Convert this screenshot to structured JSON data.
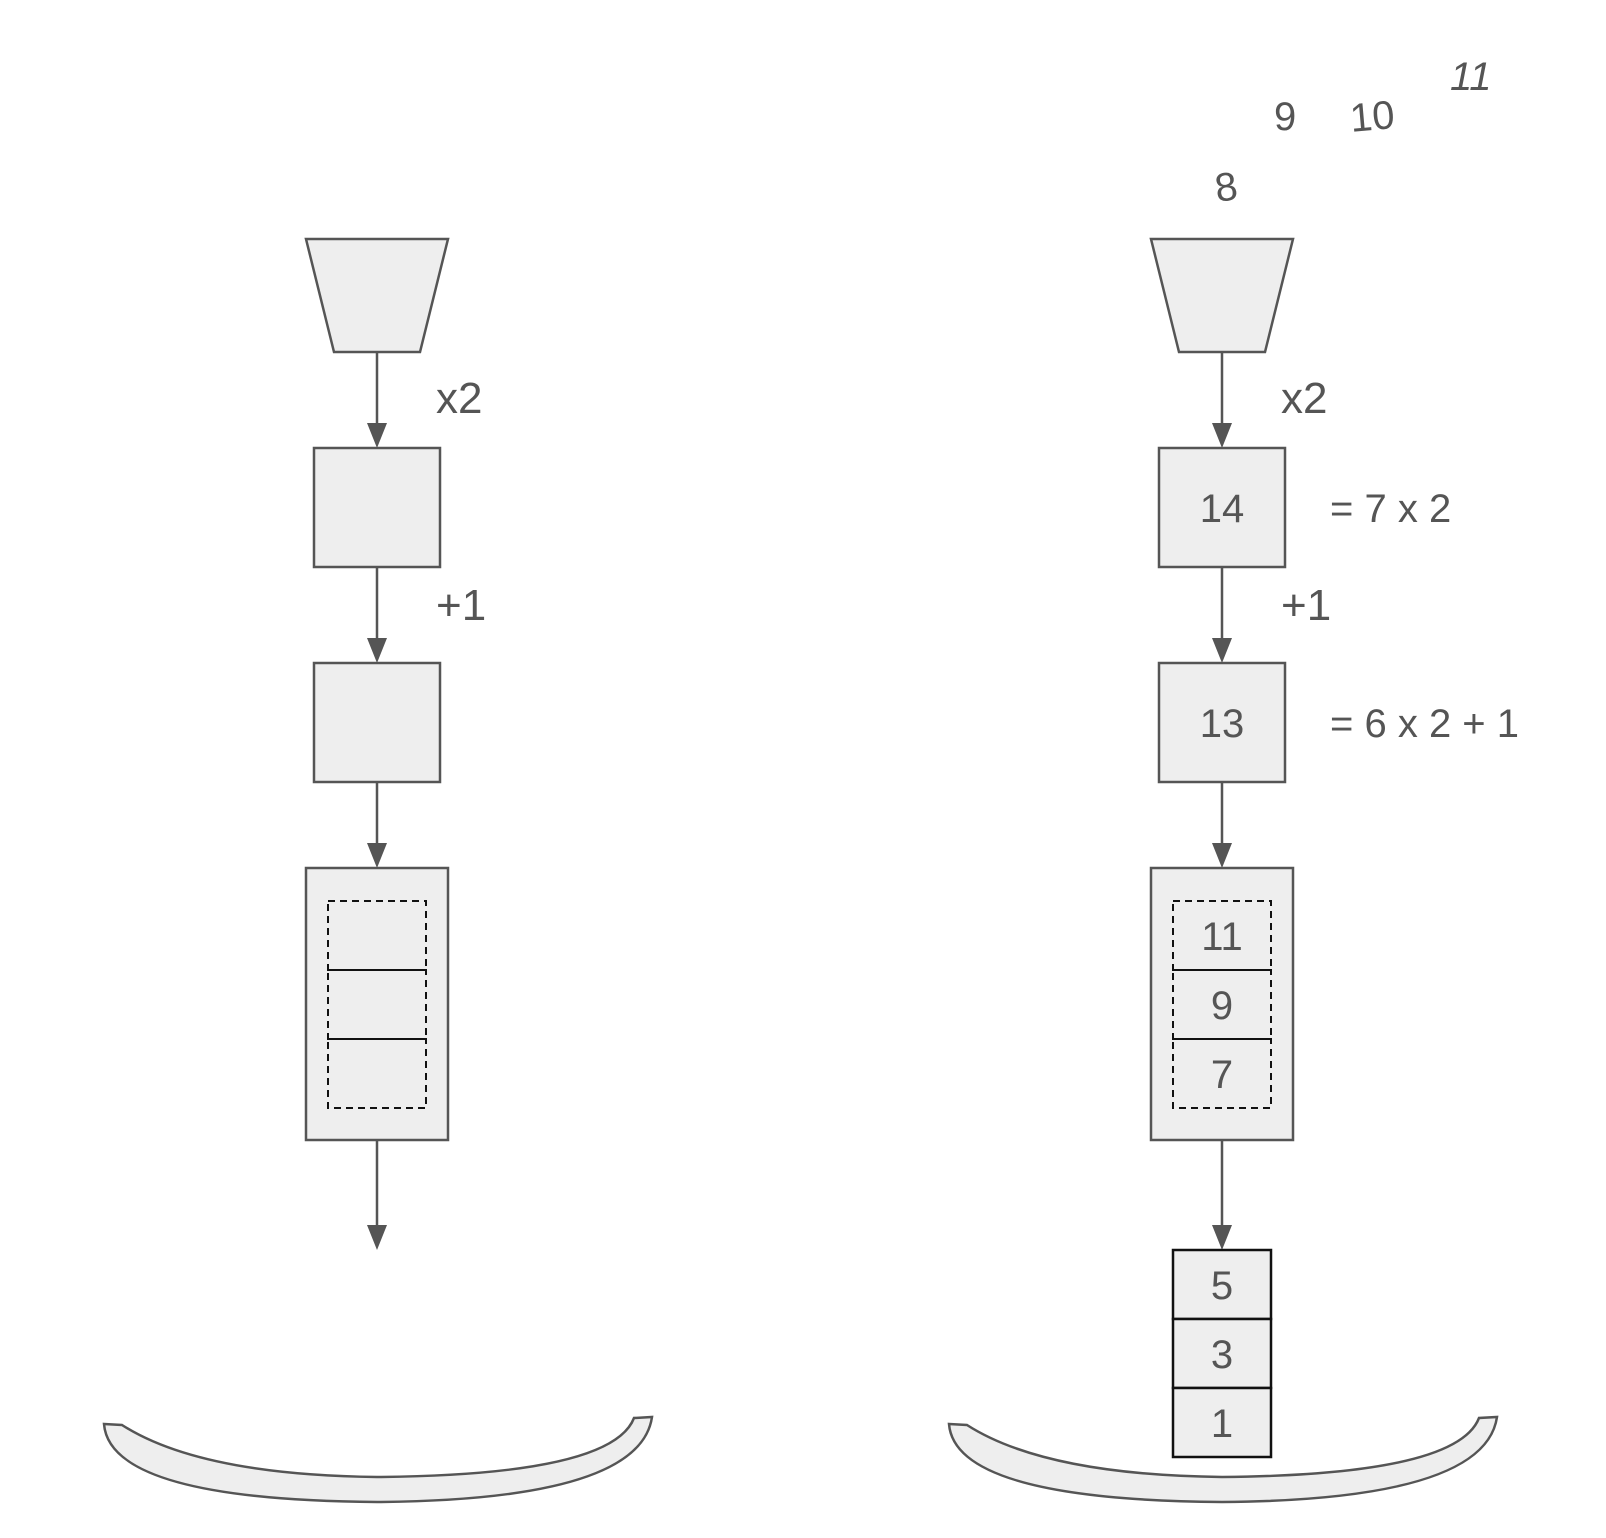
{
  "left_diagram": {
    "op_multiply": "x2",
    "op_add": "+1"
  },
  "right_diagram": {
    "incoming_numbers": [
      "8",
      "9",
      "10",
      "11"
    ],
    "op_multiply": "x2",
    "op_add": "+1",
    "box_top_value": "14",
    "box_top_equation": "= 7 x 2",
    "box_mid_value": "13",
    "box_mid_equation": "= 6 x 2 + 1",
    "buffer_slots": [
      "11",
      "9",
      "7"
    ],
    "output_stack": [
      "5",
      "3",
      "1"
    ]
  }
}
